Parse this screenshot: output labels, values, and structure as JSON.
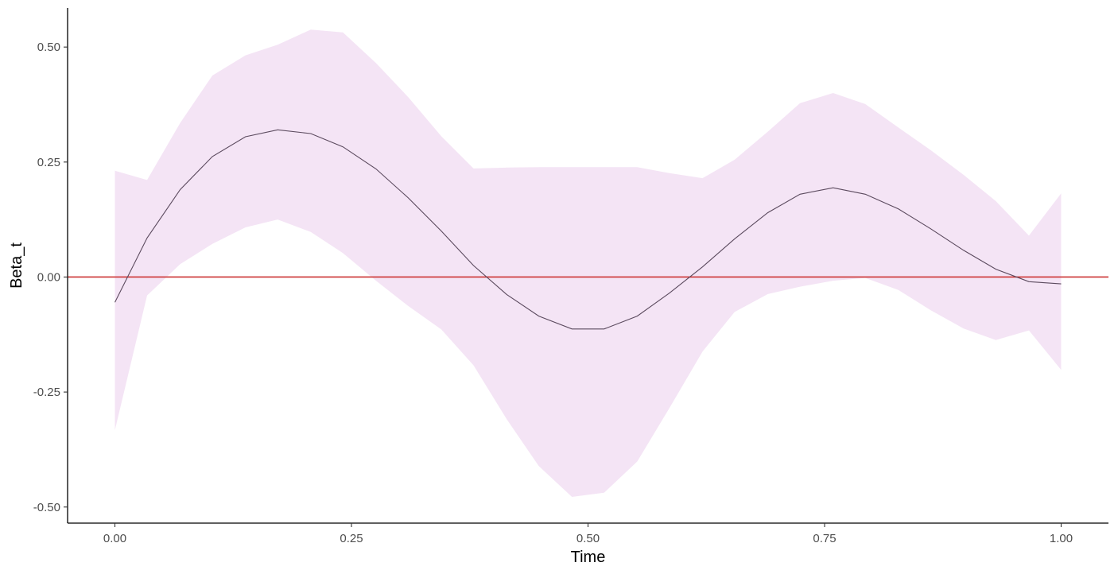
{
  "chart_data": {
    "type": "line",
    "title": "",
    "xlabel": "Time",
    "ylabel": "Beta_t",
    "xlim": [
      -0.05,
      1.05
    ],
    "ylim": [
      -0.535,
      0.585
    ],
    "x_ticks": [
      0.0,
      0.25,
      0.5,
      0.75,
      1.0
    ],
    "x_tick_labels": [
      "0.00",
      "0.25",
      "0.50",
      "0.75",
      "1.00"
    ],
    "y_ticks": [
      -0.5,
      -0.25,
      0.0,
      0.25,
      0.5
    ],
    "y_tick_labels": [
      "-0.50",
      "-0.25",
      "0.00",
      "0.25",
      "0.50"
    ],
    "grid": false,
    "x": [
      0.0,
      0.034,
      0.069,
      0.103,
      0.138,
      0.172,
      0.207,
      0.241,
      0.276,
      0.31,
      0.345,
      0.379,
      0.414,
      0.448,
      0.483,
      0.517,
      0.552,
      0.586,
      0.621,
      0.655,
      0.69,
      0.724,
      0.759,
      0.793,
      0.828,
      0.862,
      0.897,
      0.931,
      0.966,
      1.0
    ],
    "series": [
      {
        "kind": "line",
        "color": "#5b4a5e",
        "values": [
          -0.055,
          0.085,
          0.19,
          0.262,
          0.305,
          0.32,
          0.312,
          0.283,
          0.235,
          0.172,
          0.1,
          0.025,
          -0.038,
          -0.085,
          -0.113,
          -0.113,
          -0.085,
          -0.035,
          0.022,
          0.083,
          0.14,
          0.18,
          0.194,
          0.18,
          0.148,
          0.105,
          0.058,
          0.017,
          -0.01,
          -0.015
        ]
      },
      {
        "kind": "ribbon",
        "color": "#f4e4f5",
        "upper": [
          0.231,
          0.211,
          0.335,
          0.438,
          0.482,
          0.505,
          0.538,
          0.532,
          0.465,
          0.391,
          0.306,
          0.236,
          0.238,
          0.239,
          0.239,
          0.239,
          0.239,
          0.226,
          0.215,
          0.255,
          0.316,
          0.378,
          0.4,
          0.376,
          0.325,
          0.276,
          0.222,
          0.165,
          0.09,
          0.182
        ],
        "lower": [
          -0.333,
          -0.04,
          0.028,
          0.072,
          0.108,
          0.125,
          0.098,
          0.052,
          -0.008,
          -0.063,
          -0.114,
          -0.192,
          -0.309,
          -0.411,
          -0.478,
          -0.469,
          -0.401,
          -0.285,
          -0.162,
          -0.076,
          -0.037,
          -0.021,
          -0.008,
          -0.002,
          -0.028,
          -0.072,
          -0.112,
          -0.137,
          -0.116,
          -0.202
        ]
      }
    ],
    "reference_line": {
      "y": 0,
      "color": "#cc3333"
    }
  }
}
